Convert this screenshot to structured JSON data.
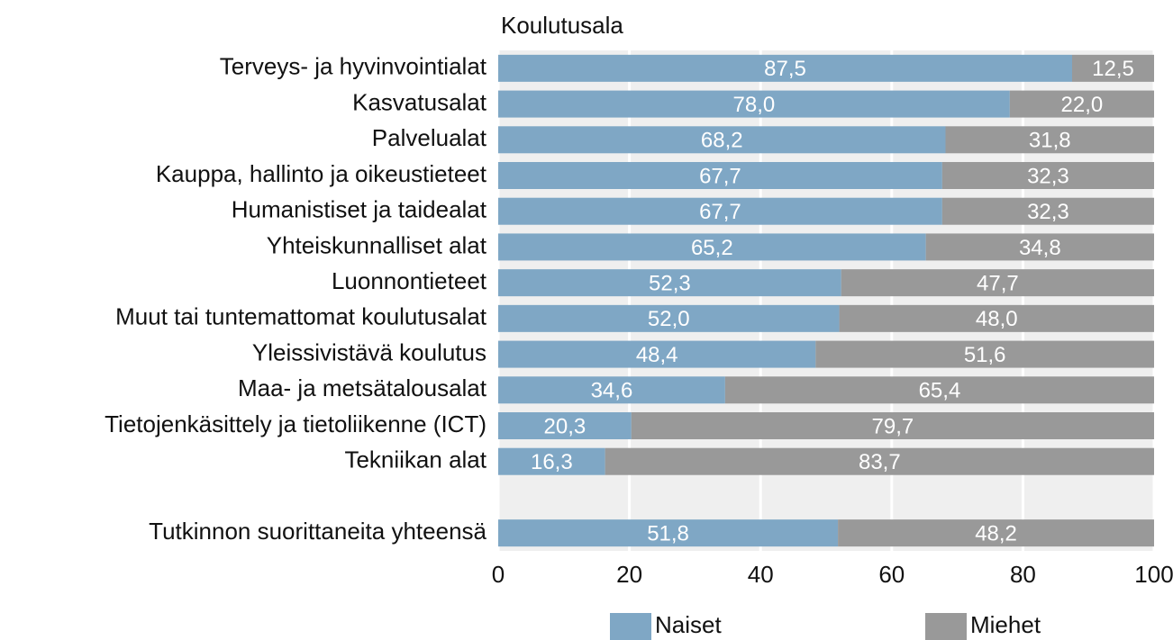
{
  "chart_data": {
    "type": "stacked-barh",
    "title": "Koulutusala",
    "categories": [
      "Terveys- ja hyvinvointialat",
      "Kasvatusalat",
      "Palvelualat",
      "Kauppa, hallinto ja oikeustieteet",
      "Humanistiset ja taidealat",
      "Yhteiskunnalliset alat",
      "Luonnontieteet",
      "Muut tai tuntemattomat koulutusalat",
      "Yleissivistävä koulutus",
      "Maa- ja metsätalousalat",
      "Tietojenkäsittely ja tietoliikenne (ICT)",
      "Tekniikan alat",
      null,
      "Tutkinnon suorittaneita yhteensä"
    ],
    "series": [
      {
        "name": "Naiset",
        "color": "#7fa7c5",
        "values": [
          87.5,
          78.0,
          68.2,
          67.7,
          67.7,
          65.2,
          52.3,
          52.0,
          48.4,
          34.6,
          20.3,
          16.3,
          null,
          51.8
        ],
        "value_labels": [
          "87,5",
          "78,0",
          "68,2",
          "67,7",
          "67,7",
          "65,2",
          "52,3",
          "52,0",
          "48,4",
          "34,6",
          "20,3",
          "16,3",
          null,
          "51,8"
        ]
      },
      {
        "name": "Miehet",
        "color": "#999999",
        "values": [
          12.5,
          22.0,
          31.8,
          32.3,
          32.3,
          34.8,
          47.7,
          48.0,
          51.6,
          65.4,
          79.7,
          83.7,
          null,
          48.2
        ],
        "value_labels": [
          "12,5",
          "22,0",
          "31,8",
          "32,3",
          "32,3",
          "34,8",
          "47,7",
          "48,0",
          "51,6",
          "65,4",
          "79,7",
          "83,7",
          null,
          "48,2"
        ]
      }
    ],
    "xlim": [
      0,
      100
    ],
    "xticks": [
      0,
      20,
      40,
      60,
      80,
      100
    ],
    "grid": true,
    "legend": "bottom"
  }
}
